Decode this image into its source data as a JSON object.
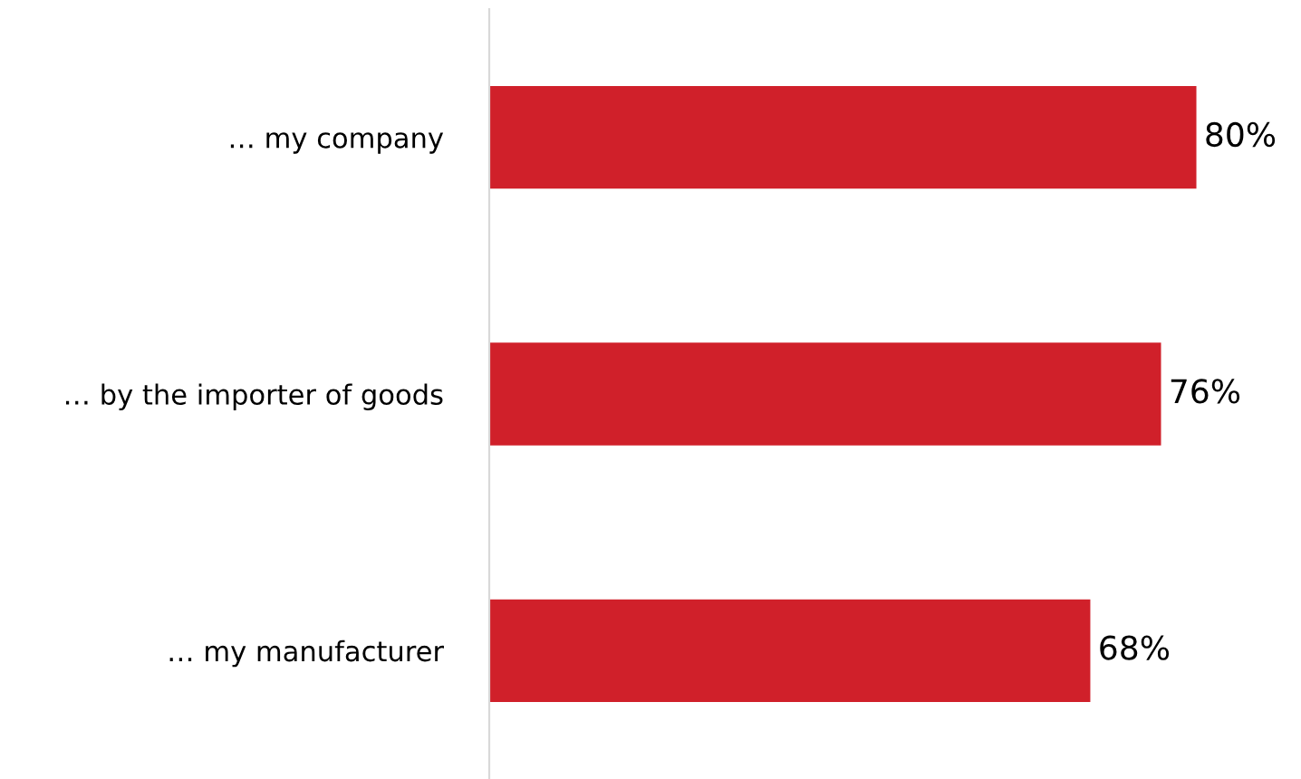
{
  "chart_data": {
    "type": "bar",
    "orientation": "horizontal",
    "categories": [
      "… my company",
      "… by the importer of goods",
      "… my manufacturer"
    ],
    "values": [
      80,
      76,
      68
    ],
    "value_labels": [
      "80%",
      "76%",
      "68%"
    ],
    "color": "#d0202a",
    "grid": false,
    "legend": false,
    "tick_labels": "y"
  }
}
